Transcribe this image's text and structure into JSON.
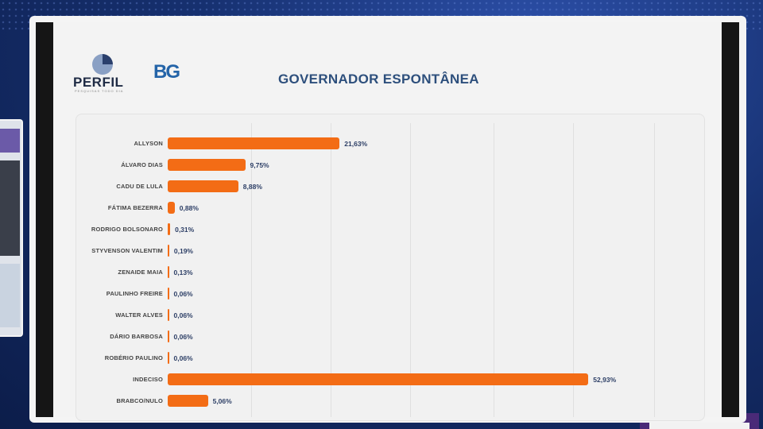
{
  "logos": {
    "perfil": "PERFIL",
    "perfil_tagline": "PESQUISAS TODO DIA",
    "bg": "BG"
  },
  "chart_data": {
    "type": "bar",
    "orientation": "horizontal",
    "title": "GOVERNADOR ESPONTÂNEA",
    "xlabel": "",
    "ylabel": "",
    "xlim": [
      0,
      60
    ],
    "grid": true,
    "bar_color": "#f36c15",
    "categories": [
      "ALLYSON",
      "ÁLVARO DIAS",
      "CADU DE LULA",
      "FÁTIMA BEZERRA",
      "RODRIGO BOLSONARO",
      "STYVENSON VALENTIM",
      "ZENAIDE MAIA",
      "PAULINHO FREIRE",
      "WALTER ALVES",
      "DÁRIO BARBOSA",
      "ROBÉRIO PAULINO",
      "INDECISO",
      "BRABCO/NULO"
    ],
    "values": [
      21.63,
      9.75,
      8.88,
      0.88,
      0.31,
      0.19,
      0.13,
      0.06,
      0.06,
      0.06,
      0.06,
      52.93,
      5.06
    ],
    "labels": [
      "21,63%",
      "9,75%",
      "8,88%",
      "0,88%",
      "0,31%",
      "0,19%",
      "0,13%",
      "0,06%",
      "0,06%",
      "0,06%",
      "0,06%",
      "52,93%",
      "5,06%"
    ]
  }
}
